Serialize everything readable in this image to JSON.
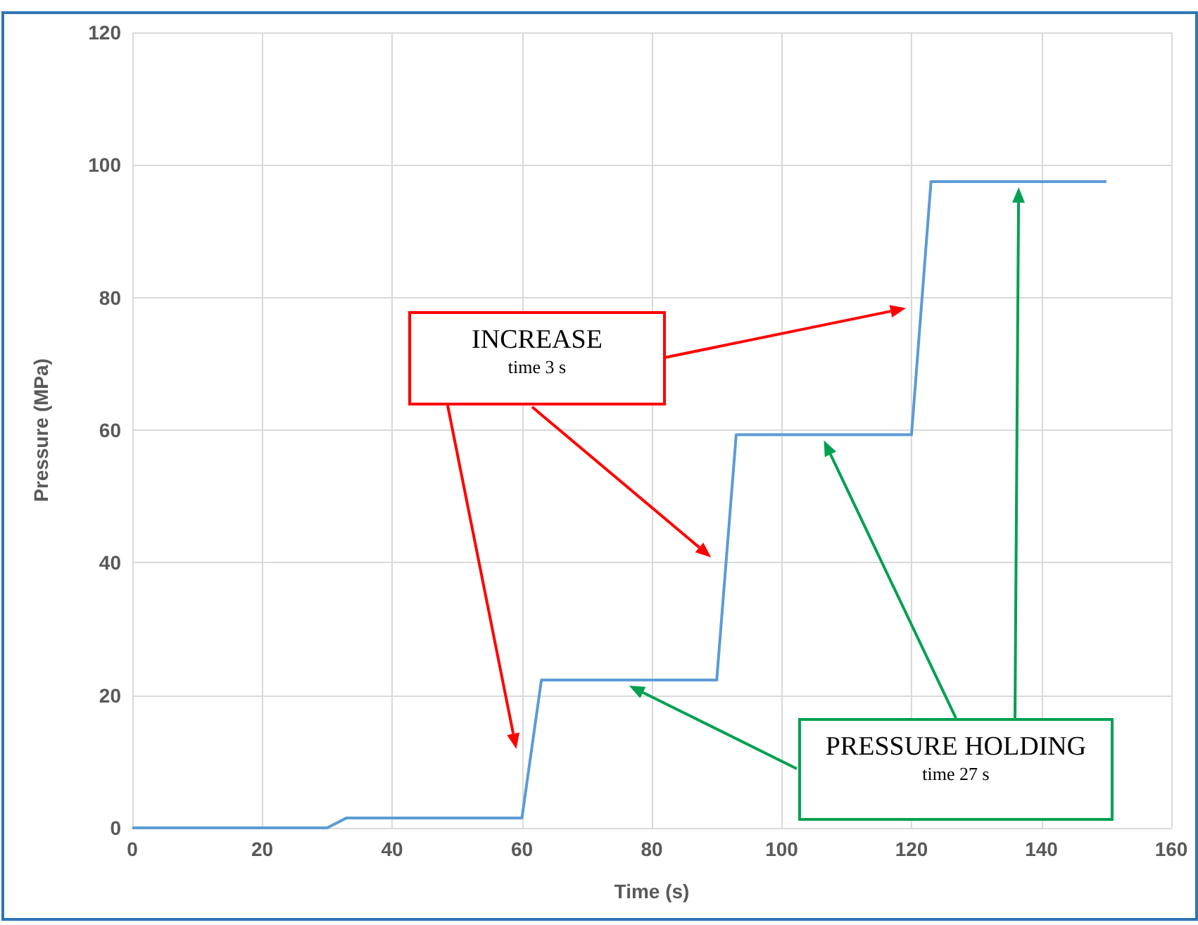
{
  "chart_data": {
    "type": "line",
    "xlabel": "Time (s)",
    "ylabel": "Pressure (MPa)",
    "x": [
      0,
      30,
      33,
      60,
      63,
      90,
      93,
      120,
      123,
      150
    ],
    "series": [
      {
        "color": "#5b9bd5",
        "values": [
          0,
          0,
          1.5,
          1.5,
          22.3,
          22.3,
          59.3,
          59.3,
          97.5,
          97.5
        ]
      }
    ],
    "xlim": [
      0,
      160
    ],
    "xticks": [
      0,
      20,
      40,
      60,
      80,
      100,
      120,
      140,
      160
    ],
    "ylim": [
      0,
      120
    ],
    "yticks": [
      0,
      20,
      40,
      60,
      80,
      100,
      120
    ],
    "grid": true,
    "marker": "none",
    "line_style": "solid",
    "annotations": [
      "INCREASE",
      "time 3 s",
      "PRESSURE HOLDING",
      "time 27 s"
    ]
  }
}
